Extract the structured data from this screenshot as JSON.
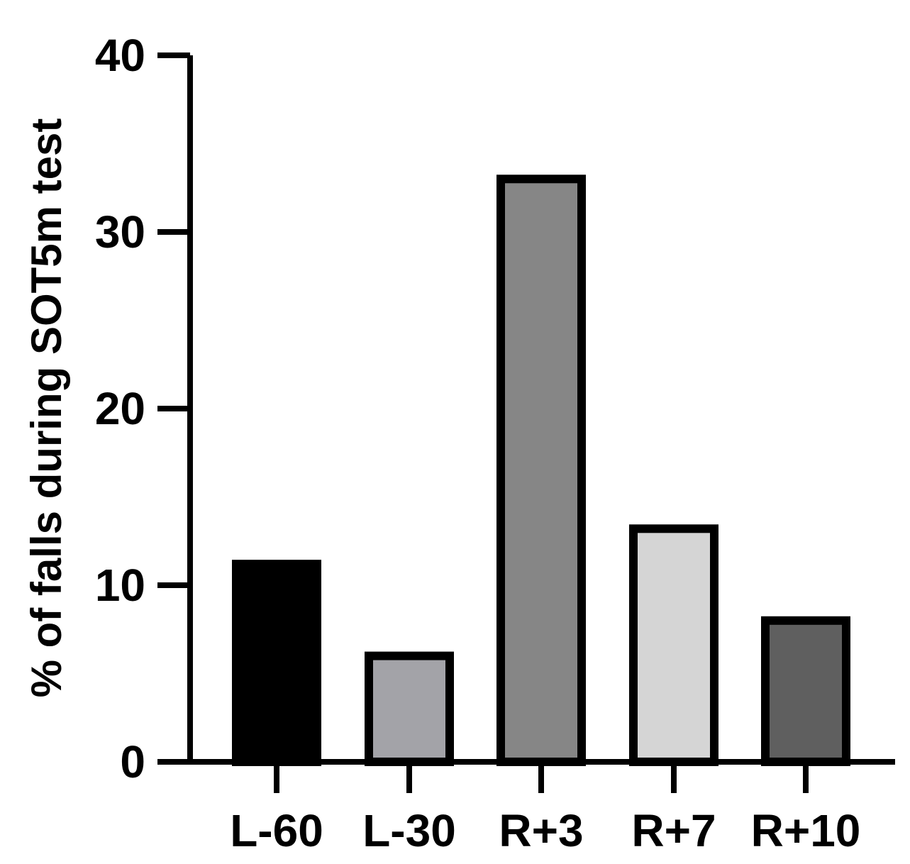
{
  "chart_data": {
    "type": "bar",
    "categories": [
      "L-60",
      "L-30",
      "R+3",
      "R+7",
      "R+10"
    ],
    "values": [
      11.2,
      6.0,
      33.0,
      13.2,
      8.0
    ],
    "colors": [
      "#000000",
      "#a3a3a8",
      "#868686",
      "#d5d5d5",
      "#5f5f5f"
    ],
    "title": "",
    "xlabel": "",
    "ylabel": "% of falls during SOT5m test",
    "ylim": [
      0,
      40
    ],
    "yticks": [
      0,
      10,
      20,
      30,
      40
    ],
    "ytick_labels": [
      "0",
      "10",
      "20",
      "30",
      "40"
    ],
    "grid": false,
    "legend": "none"
  }
}
